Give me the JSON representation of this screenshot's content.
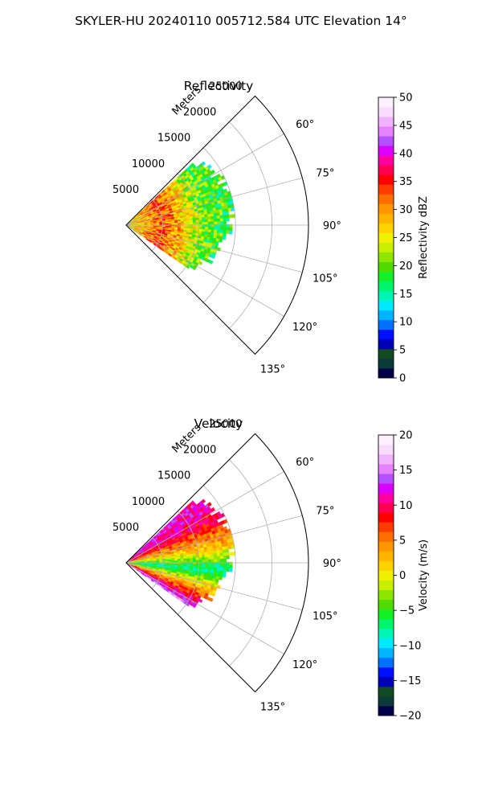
{
  "suptitle": "SKYLER-HU  20240110  005712.584 UTC Elevation 14°",
  "chart_data": [
    {
      "type": "heatmap",
      "subtype": "polar-ppi-sector",
      "title": "Reflectivity",
      "radial_label": "Meters",
      "radial_ticks": [
        5000,
        10000,
        15000,
        20000,
        25000
      ],
      "radial_max": 25000,
      "data_extent_m": 15000,
      "angle_range_deg": [
        45,
        135
      ],
      "angle_ticks": [
        "60°",
        "75°",
        "90°",
        "105°",
        "120°",
        "135°"
      ],
      "angle_tick_values": [
        60,
        75,
        90,
        105,
        120,
        135
      ],
      "grid": true,
      "colorbar": {
        "label": "Reflectivity dBZ",
        "vmin": 0,
        "vmax": 50,
        "ticks": [
          "0",
          "5",
          "10",
          "15",
          "20",
          "25",
          "30",
          "35",
          "40",
          "45",
          "50"
        ],
        "tick_values": [
          0,
          5,
          10,
          15,
          20,
          25,
          30,
          35,
          40,
          45,
          50
        ],
        "colors": [
          "#00004a",
          "#0a3a3a",
          "#124a24",
          "#0000b4",
          "#0010ff",
          "#0070ff",
          "#00b4ff",
          "#00eaff",
          "#00f5b4",
          "#00f56e",
          "#14f028",
          "#50dc00",
          "#8ce600",
          "#c8f000",
          "#f0f000",
          "#ffd200",
          "#ffb400",
          "#ff9600",
          "#ff6e00",
          "#ff3c00",
          "#ff0000",
          "#ff0050",
          "#ff00a0",
          "#dc00ff",
          "#b450ff",
          "#e682ff",
          "#f0b4ff",
          "#fadcff",
          "#fff0ff"
        ]
      },
      "field_profile": [
        {
          "range_m": 0,
          "value": 25
        },
        {
          "range_m": 2000,
          "value": 28
        },
        {
          "range_m": 5000,
          "value": 33
        },
        {
          "range_m": 7500,
          "value": 28
        },
        {
          "range_m": 9000,
          "value": 24
        },
        {
          "range_m": 11000,
          "value": 20
        },
        {
          "range_m": 14000,
          "value": 18
        }
      ]
    },
    {
      "type": "heatmap",
      "subtype": "polar-ppi-sector",
      "title": "Velocity",
      "radial_label": "Meters",
      "radial_ticks": [
        5000,
        10000,
        15000,
        20000,
        25000
      ],
      "radial_max": 25000,
      "data_extent_m": 15000,
      "angle_range_deg": [
        45,
        135
      ],
      "angle_ticks": [
        "60°",
        "75°",
        "90°",
        "105°",
        "120°",
        "135°"
      ],
      "angle_tick_values": [
        60,
        75,
        90,
        105,
        120,
        135
      ],
      "grid": true,
      "colorbar": {
        "label": "Velocity (m/s)",
        "vmin": -20,
        "vmax": 20,
        "ticks": [
          "−20",
          "−15",
          "−10",
          "−5",
          "0",
          "5",
          "10",
          "15",
          "20"
        ],
        "tick_values": [
          -20,
          -15,
          -10,
          -5,
          0,
          5,
          10,
          15,
          20
        ],
        "colors": [
          "#00004a",
          "#0a3a3a",
          "#124a24",
          "#0000b4",
          "#0010ff",
          "#0070ff",
          "#00b4ff",
          "#00eaff",
          "#00f5b4",
          "#00f56e",
          "#14f028",
          "#50dc00",
          "#8ce600",
          "#c8f000",
          "#f0f000",
          "#ffd200",
          "#ffb400",
          "#ff9600",
          "#ff6e00",
          "#ff3c00",
          "#ff0000",
          "#ff0050",
          "#ff00a0",
          "#dc00ff",
          "#b450ff",
          "#e682ff",
          "#f0b4ff",
          "#fadcff",
          "#fff0ff"
        ]
      },
      "field_profile": [
        {
          "azimuth_deg": 50,
          "value": 12
        },
        {
          "azimuth_deg": 65,
          "value": 9
        },
        {
          "azimuth_deg": 80,
          "value": 2
        },
        {
          "azimuth_deg": 95,
          "value": -8
        },
        {
          "azimuth_deg": 110,
          "value": 4
        },
        {
          "azimuth_deg": 125,
          "value": 15
        }
      ]
    }
  ]
}
